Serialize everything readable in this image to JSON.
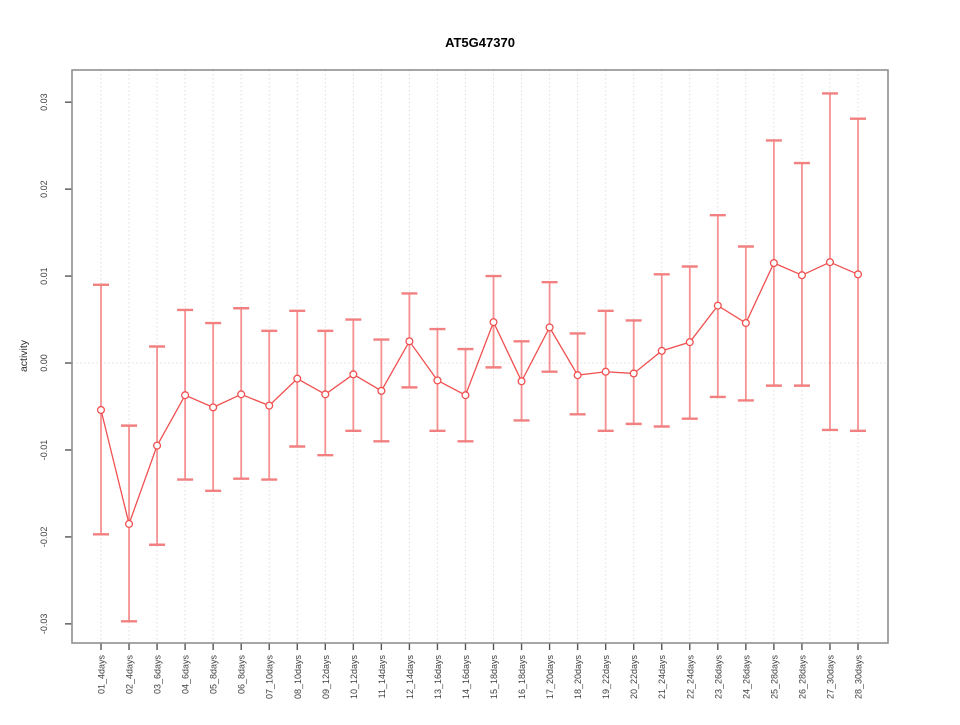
{
  "chart_data": {
    "type": "line",
    "title": "AT5G47370",
    "xlabel": "",
    "ylabel": "activity",
    "legend": "none",
    "grid": "vertical-dotted",
    "zero_line_dotted": true,
    "ylim": [
      -0.0322,
      0.0337
    ],
    "ytick_values": [
      -0.03,
      -0.02,
      -0.01,
      0.0,
      0.01,
      0.02,
      0.03
    ],
    "ytick_labels": [
      "-0.03",
      "-0.02",
      "-0.01",
      "0.00",
      "0.01",
      "0.02",
      "0.03"
    ],
    "categories": [
      "01_4days",
      "02_4days",
      "03_6days",
      "04_6days",
      "05_8days",
      "06_8days",
      "07_10days",
      "08_10days",
      "09_12days",
      "10_12days",
      "11_14days",
      "12_14days",
      "13_16days",
      "14_16days",
      "15_18days",
      "16_18days",
      "17_20days",
      "18_20days",
      "19_22days",
      "20_22days",
      "21_24days",
      "22_24days",
      "23_26days",
      "24_26days",
      "25_28days",
      "26_28days",
      "27_30days",
      "28_30days"
    ],
    "series": [
      {
        "name": "activity",
        "marker": "open-circle",
        "values": [
          -0.0054,
          -0.0185,
          -0.0095,
          -0.0037,
          -0.0051,
          -0.0036,
          -0.0049,
          -0.0018,
          -0.0036,
          -0.0013,
          -0.0032,
          0.0025,
          -0.002,
          -0.0037,
          0.0047,
          -0.0021,
          0.0041,
          -0.0014,
          -0.001,
          -0.0012,
          0.0014,
          0.0024,
          0.0066,
          0.0046,
          0.0115,
          0.0101,
          0.0116,
          0.0102
        ],
        "upper": [
          0.009,
          -0.0072,
          0.0019,
          0.0061,
          0.0046,
          0.0063,
          0.0037,
          0.006,
          0.0037,
          0.005,
          0.0027,
          0.008,
          0.0039,
          0.0016,
          0.01,
          0.0025,
          0.0093,
          0.0034,
          0.006,
          0.0049,
          0.0102,
          0.0111,
          0.017,
          0.0134,
          0.0256,
          0.023,
          0.031,
          0.0281
        ],
        "lower": [
          -0.0197,
          -0.0297,
          -0.0209,
          -0.0134,
          -0.0147,
          -0.0133,
          -0.0134,
          -0.0096,
          -0.0106,
          -0.0078,
          -0.009,
          -0.0028,
          -0.0078,
          -0.009,
          -0.0005,
          -0.0066,
          -0.001,
          -0.0059,
          -0.0078,
          -0.007,
          -0.0073,
          -0.0064,
          -0.0039,
          -0.0043,
          -0.0026,
          -0.0026,
          -0.0077,
          -0.0078
        ]
      }
    ],
    "colors": {
      "series_line": "#f05050",
      "marker_stroke": "#f05050",
      "marker_fill": "#ffffff",
      "error_bar": "#f59191",
      "error_cap": "#f28080",
      "grid_line": "#dedede",
      "zero_line": "#e8dcdc",
      "frame": "#8f8f8f",
      "tick": "#555555",
      "text": "#404040",
      "background": "#ffffff"
    }
  }
}
